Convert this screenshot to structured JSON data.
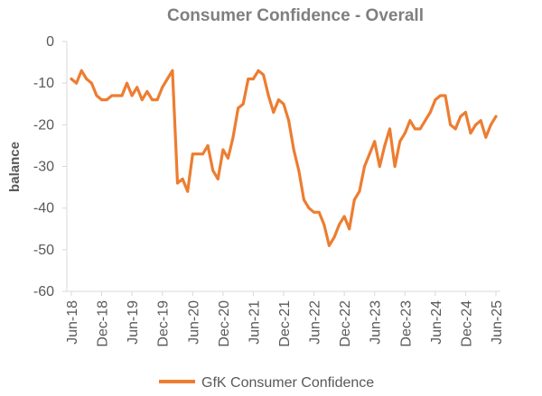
{
  "chart_data": {
    "type": "line",
    "title": "Consumer Confidence - Overall",
    "xlabel": "",
    "ylabel": "balance",
    "ylim": [
      -60,
      0
    ],
    "yticks": [
      0,
      -10,
      -20,
      -30,
      -40,
      -50,
      -60
    ],
    "xtick_labels": [
      "Jun-18",
      "Dec-18",
      "Jun-19",
      "Dec-19",
      "Jun-20",
      "Dec-20",
      "Jun-21",
      "Dec-21",
      "Jun-22",
      "Dec-22",
      "Jun-23",
      "Dec-23",
      "Jun-24",
      "Dec-24",
      "Jun-25"
    ],
    "x": [
      "Jun-18",
      "Jul-18",
      "Aug-18",
      "Sep-18",
      "Oct-18",
      "Nov-18",
      "Dec-18",
      "Jan-19",
      "Feb-19",
      "Mar-19",
      "Apr-19",
      "May-19",
      "Jun-19",
      "Jul-19",
      "Aug-19",
      "Sep-19",
      "Oct-19",
      "Nov-19",
      "Dec-19",
      "Jan-20",
      "Feb-20",
      "Mar-20",
      "Apr-20",
      "May-20",
      "Jun-20",
      "Jul-20",
      "Aug-20",
      "Sep-20",
      "Oct-20",
      "Nov-20",
      "Dec-20",
      "Jan-21",
      "Feb-21",
      "Mar-21",
      "Apr-21",
      "May-21",
      "Jun-21",
      "Jul-21",
      "Aug-21",
      "Sep-21",
      "Oct-21",
      "Nov-21",
      "Dec-21",
      "Jan-22",
      "Feb-22",
      "Mar-22",
      "Apr-22",
      "May-22",
      "Jun-22",
      "Jul-22",
      "Aug-22",
      "Sep-22",
      "Oct-22",
      "Nov-22",
      "Dec-22",
      "Jan-23",
      "Feb-23",
      "Mar-23",
      "Apr-23",
      "May-23",
      "Jun-23",
      "Jul-23",
      "Aug-23",
      "Sep-23",
      "Oct-23",
      "Nov-23",
      "Dec-23",
      "Jan-24",
      "Feb-24",
      "Mar-24",
      "Apr-24",
      "May-24",
      "Jun-24",
      "Jul-24",
      "Aug-24",
      "Sep-24",
      "Oct-24",
      "Nov-24",
      "Dec-24",
      "Jan-25",
      "Feb-25",
      "Mar-25",
      "Apr-25",
      "May-25",
      "Jun-25"
    ],
    "series": [
      {
        "name": "GfK Consumer Confidence",
        "color": "#ed7d31",
        "values": [
          -9,
          -10,
          -7,
          -9,
          -10,
          -13,
          -14,
          -14,
          -13,
          -13,
          -13,
          -10,
          -13,
          -11,
          -14,
          -12,
          -14,
          -14,
          -11,
          -9,
          -7,
          -34,
          -33,
          -36,
          -27,
          -27,
          -27,
          -25,
          -31,
          -33,
          -26,
          -28,
          -23,
          -16,
          -15,
          -9,
          -9,
          -7,
          -8,
          -13,
          -17,
          -14,
          -15,
          -19,
          -26,
          -31,
          -38,
          -40,
          -41,
          -41,
          -44,
          -49,
          -47,
          -44,
          -42,
          -45,
          -38,
          -36,
          -30,
          -27,
          -24,
          -30,
          -25,
          -21,
          -30,
          -24,
          -22,
          -19,
          -21,
          -21,
          -19,
          -17,
          -14,
          -13,
          -13,
          -20,
          -21,
          -18,
          -17,
          -22,
          -20,
          -19,
          -23,
          -20,
          -18
        ]
      }
    ],
    "legend_position": "bottom",
    "grid": false
  }
}
